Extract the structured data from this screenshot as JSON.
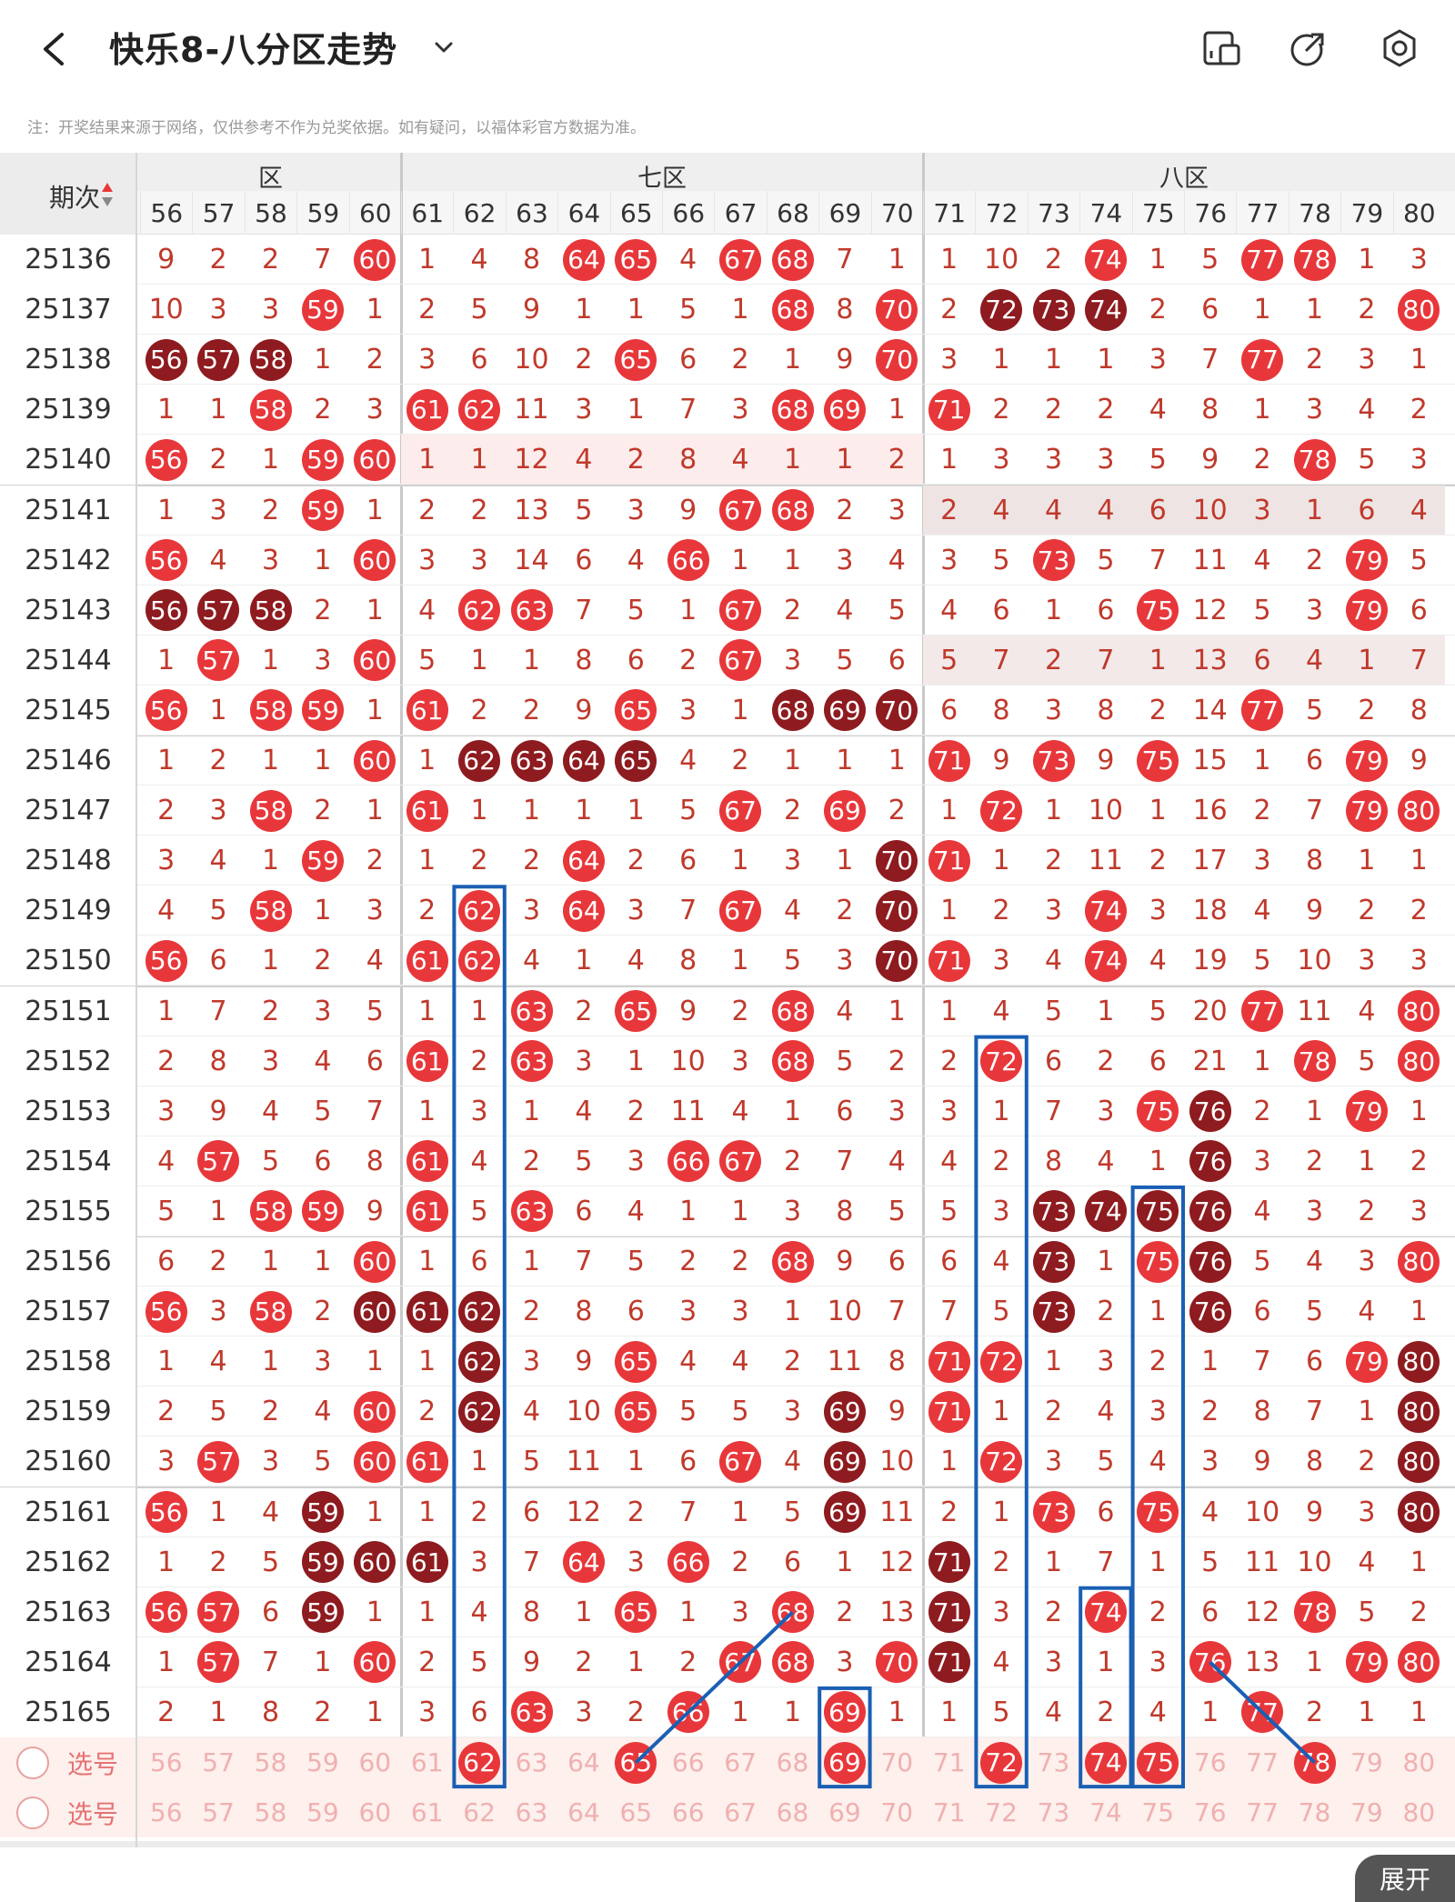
{
  "header": {
    "title": "快乐8-八分区走势",
    "icons": [
      "back-icon",
      "chevron-down-icon",
      "layout-icon",
      "share-icon",
      "settings-icon"
    ]
  },
  "note": "注：开奖结果来源于网络，仅供参考不作为兑奖依据。如有疑问，以福体彩官方数据为准。",
  "table": {
    "period_label": "期次",
    "zones": [
      {
        "name": "六区",
        "visible_text": "区"
      },
      {
        "name": "七区",
        "visible_text": "七区"
      },
      {
        "name": "八区",
        "visible_text": "八区"
      }
    ],
    "columns": [
      "56",
      "57",
      "58",
      "59",
      "60",
      "61",
      "62",
      "63",
      "64",
      "65",
      "66",
      "67",
      "68",
      "69",
      "70",
      "71",
      "72",
      "73",
      "74",
      "75",
      "76",
      "77",
      "78",
      "79",
      "80"
    ],
    "rows": [
      {
        "period": "25136",
        "cells": [
          "9",
          "2",
          "2",
          "7",
          "60",
          "1",
          "4",
          "8",
          "64",
          "65",
          "4",
          "67",
          "68",
          "7",
          "1",
          "1",
          "10",
          "2",
          "74",
          "1",
          "5",
          "77",
          "78",
          "1",
          "3"
        ]
      },
      {
        "period": "25137",
        "cells": [
          "10",
          "3",
          "3",
          "59",
          "1",
          "2",
          "5",
          "9",
          "1",
          "1",
          "5",
          "1",
          "68",
          "8",
          "70",
          "2",
          "72",
          "73",
          "74",
          "2",
          "6",
          "1",
          "1",
          "2",
          "80"
        ]
      },
      {
        "period": "25138",
        "cells": [
          "56",
          "57",
          "58",
          "1",
          "2",
          "3",
          "6",
          "10",
          "2",
          "65",
          "6",
          "2",
          "1",
          "9",
          "70",
          "3",
          "1",
          "1",
          "1",
          "3",
          "7",
          "77",
          "2",
          "3",
          "1"
        ]
      },
      {
        "period": "25139",
        "cells": [
          "1",
          "1",
          "58",
          "2",
          "3",
          "61",
          "62",
          "11",
          "3",
          "1",
          "7",
          "3",
          "68",
          "69",
          "1",
          "71",
          "2",
          "2",
          "2",
          "4",
          "8",
          "1",
          "3",
          "4",
          "2"
        ]
      },
      {
        "period": "25140",
        "cells": [
          "56",
          "2",
          "1",
          "59",
          "60",
          "1",
          "1",
          "12",
          "4",
          "2",
          "8",
          "4",
          "1",
          "1",
          "2",
          "1",
          "3",
          "3",
          "3",
          "5",
          "9",
          "2",
          "78",
          "5",
          "3"
        ]
      },
      {
        "period": "25141",
        "cells": [
          "1",
          "3",
          "2",
          "59",
          "1",
          "2",
          "2",
          "13",
          "5",
          "3",
          "9",
          "67",
          "68",
          "2",
          "3",
          "2",
          "4",
          "4",
          "4",
          "6",
          "10",
          "3",
          "1",
          "6",
          "4"
        ]
      },
      {
        "period": "25142",
        "cells": [
          "56",
          "4",
          "3",
          "1",
          "60",
          "3",
          "3",
          "14",
          "6",
          "4",
          "66",
          "1",
          "1",
          "3",
          "4",
          "3",
          "5",
          "73",
          "5",
          "7",
          "11",
          "4",
          "2",
          "79",
          "5"
        ]
      },
      {
        "period": "25143",
        "cells": [
          "56",
          "57",
          "58",
          "2",
          "1",
          "4",
          "62",
          "63",
          "7",
          "5",
          "1",
          "67",
          "2",
          "4",
          "5",
          "4",
          "6",
          "1",
          "6",
          "75",
          "12",
          "5",
          "3",
          "79",
          "6"
        ]
      },
      {
        "period": "25144",
        "cells": [
          "1",
          "57",
          "1",
          "3",
          "60",
          "5",
          "1",
          "1",
          "8",
          "6",
          "2",
          "67",
          "3",
          "5",
          "6",
          "5",
          "7",
          "2",
          "7",
          "1",
          "13",
          "6",
          "4",
          "1",
          "7"
        ]
      },
      {
        "period": "25145",
        "cells": [
          "56",
          "1",
          "58",
          "59",
          "1",
          "61",
          "2",
          "2",
          "9",
          "65",
          "3",
          "1",
          "68",
          "69",
          "70",
          "6",
          "8",
          "3",
          "8",
          "2",
          "14",
          "77",
          "5",
          "2",
          "8"
        ]
      },
      {
        "period": "25146",
        "cells": [
          "1",
          "2",
          "1",
          "1",
          "60",
          "1",
          "62",
          "63",
          "64",
          "65",
          "4",
          "2",
          "1",
          "1",
          "1",
          "71",
          "9",
          "73",
          "9",
          "75",
          "15",
          "1",
          "6",
          "79",
          "9"
        ]
      },
      {
        "period": "25147",
        "cells": [
          "2",
          "3",
          "58",
          "2",
          "1",
          "61",
          "1",
          "1",
          "1",
          "1",
          "5",
          "67",
          "2",
          "69",
          "2",
          "1",
          "72",
          "1",
          "10",
          "1",
          "16",
          "2",
          "7",
          "79",
          "80"
        ]
      },
      {
        "period": "25148",
        "cells": [
          "3",
          "4",
          "1",
          "59",
          "2",
          "1",
          "2",
          "2",
          "64",
          "2",
          "6",
          "1",
          "3",
          "1",
          "70",
          "71",
          "1",
          "2",
          "11",
          "2",
          "17",
          "3",
          "8",
          "1",
          "1"
        ]
      },
      {
        "period": "25149",
        "cells": [
          "4",
          "5",
          "58",
          "1",
          "3",
          "2",
          "62",
          "3",
          "64",
          "3",
          "7",
          "67",
          "4",
          "2",
          "70",
          "1",
          "2",
          "3",
          "74",
          "3",
          "18",
          "4",
          "9",
          "2",
          "2"
        ]
      },
      {
        "period": "25150",
        "cells": [
          "56",
          "6",
          "1",
          "2",
          "4",
          "61",
          "62",
          "4",
          "1",
          "4",
          "8",
          "1",
          "5",
          "3",
          "70",
          "71",
          "3",
          "4",
          "74",
          "4",
          "19",
          "5",
          "10",
          "3",
          "3"
        ]
      },
      {
        "period": "25151",
        "cells": [
          "1",
          "7",
          "2",
          "3",
          "5",
          "1",
          "1",
          "63",
          "2",
          "65",
          "9",
          "2",
          "68",
          "4",
          "1",
          "1",
          "4",
          "5",
          "1",
          "5",
          "20",
          "77",
          "11",
          "4",
          "80"
        ]
      },
      {
        "period": "25152",
        "cells": [
          "2",
          "8",
          "3",
          "4",
          "6",
          "61",
          "2",
          "63",
          "3",
          "1",
          "10",
          "3",
          "68",
          "5",
          "2",
          "2",
          "72",
          "6",
          "2",
          "6",
          "21",
          "1",
          "78",
          "5",
          "80"
        ]
      },
      {
        "period": "25153",
        "cells": [
          "3",
          "9",
          "4",
          "5",
          "7",
          "1",
          "3",
          "1",
          "4",
          "2",
          "11",
          "4",
          "1",
          "6",
          "3",
          "3",
          "1",
          "7",
          "3",
          "75",
          "76",
          "2",
          "1",
          "79",
          "1"
        ]
      },
      {
        "period": "25154",
        "cells": [
          "4",
          "57",
          "5",
          "6",
          "8",
          "61",
          "4",
          "2",
          "5",
          "3",
          "66",
          "67",
          "2",
          "7",
          "4",
          "4",
          "2",
          "8",
          "4",
          "1",
          "76",
          "3",
          "2",
          "1",
          "2"
        ]
      },
      {
        "period": "25155",
        "cells": [
          "5",
          "1",
          "58",
          "59",
          "9",
          "61",
          "5",
          "63",
          "6",
          "4",
          "1",
          "1",
          "3",
          "8",
          "5",
          "5",
          "3",
          "73",
          "74",
          "75",
          "76",
          "4",
          "3",
          "2",
          "3"
        ]
      },
      {
        "period": "25156",
        "cells": [
          "6",
          "2",
          "1",
          "1",
          "60",
          "1",
          "6",
          "1",
          "7",
          "5",
          "2",
          "2",
          "68",
          "9",
          "6",
          "6",
          "4",
          "73",
          "1",
          "75",
          "76",
          "5",
          "4",
          "3",
          "80"
        ]
      },
      {
        "period": "25157",
        "cells": [
          "56",
          "3",
          "58",
          "2",
          "60",
          "61",
          "62",
          "2",
          "8",
          "6",
          "3",
          "3",
          "1",
          "10",
          "7",
          "7",
          "5",
          "73",
          "2",
          "1",
          "76",
          "6",
          "5",
          "4",
          "1"
        ]
      },
      {
        "period": "25158",
        "cells": [
          "1",
          "4",
          "1",
          "3",
          "1",
          "1",
          "62",
          "3",
          "9",
          "65",
          "4",
          "4",
          "2",
          "11",
          "8",
          "71",
          "72",
          "1",
          "3",
          "2",
          "1",
          "7",
          "6",
          "79",
          "80"
        ]
      },
      {
        "period": "25159",
        "cells": [
          "2",
          "5",
          "2",
          "4",
          "60",
          "2",
          "62",
          "4",
          "10",
          "65",
          "5",
          "5",
          "3",
          "69",
          "9",
          "71",
          "1",
          "2",
          "4",
          "3",
          "2",
          "8",
          "7",
          "1",
          "80"
        ]
      },
      {
        "period": "25160",
        "cells": [
          "3",
          "57",
          "3",
          "5",
          "60",
          "61",
          "1",
          "5",
          "11",
          "1",
          "6",
          "67",
          "4",
          "69",
          "10",
          "1",
          "72",
          "3",
          "5",
          "4",
          "3",
          "9",
          "8",
          "2",
          "80"
        ]
      },
      {
        "period": "25161",
        "cells": [
          "56",
          "1",
          "4",
          "59",
          "1",
          "1",
          "2",
          "6",
          "12",
          "2",
          "7",
          "1",
          "5",
          "69",
          "11",
          "2",
          "1",
          "73",
          "6",
          "75",
          "4",
          "10",
          "9",
          "3",
          "80"
        ]
      },
      {
        "period": "25162",
        "cells": [
          "1",
          "2",
          "5",
          "59",
          "60",
          "61",
          "3",
          "7",
          "64",
          "3",
          "66",
          "2",
          "6",
          "1",
          "12",
          "71",
          "2",
          "1",
          "7",
          "1",
          "5",
          "11",
          "10",
          "4",
          "1"
        ]
      },
      {
        "period": "25163",
        "cells": [
          "56",
          "57",
          "6",
          "59",
          "1",
          "1",
          "4",
          "8",
          "1",
          "65",
          "1",
          "3",
          "68",
          "2",
          "13",
          "71",
          "3",
          "2",
          "74",
          "2",
          "6",
          "12",
          "78",
          "5",
          "2"
        ]
      },
      {
        "period": "25164",
        "cells": [
          "1",
          "57",
          "7",
          "1",
          "60",
          "2",
          "5",
          "9",
          "2",
          "1",
          "2",
          "67",
          "68",
          "3",
          "70",
          "71",
          "4",
          "3",
          "1",
          "3",
          "76",
          "13",
          "1",
          "79",
          "80"
        ]
      },
      {
        "period": "25165",
        "cells": [
          "2",
          "1",
          "8",
          "2",
          "1",
          "3",
          "6",
          "63",
          "3",
          "2",
          "66",
          "1",
          "1",
          "69",
          "1",
          "1",
          "5",
          "4",
          "2",
          "4",
          "1",
          "77",
          "2",
          "1",
          "1"
        ]
      }
    ],
    "select_rows": [
      {
        "label": "选号",
        "selected": [
          "62",
          "65",
          "69",
          "72",
          "74",
          "75",
          "78"
        ]
      },
      {
        "label": "选号",
        "selected": []
      }
    ],
    "footer": {
      "period_placeholder": "-"
    }
  },
  "expand_button": "展开",
  "colors": {
    "ball_red": "#e8373a",
    "ball_dark": "#8e1b1f",
    "number": "#c0392b",
    "highlight_box": "#1a5fb4"
  }
}
